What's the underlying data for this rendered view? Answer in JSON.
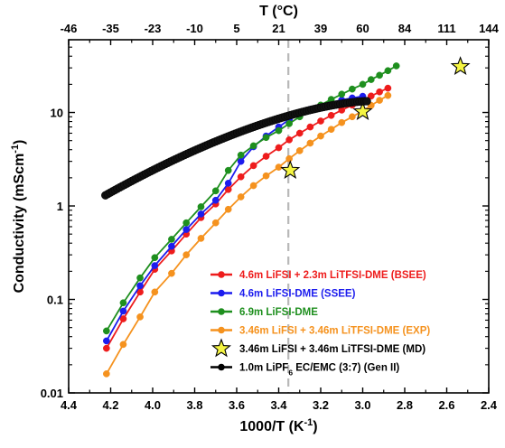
{
  "chart_data": {
    "type": "line",
    "xlabel": "1000/T (K",
    "xlabel_sup": "-1",
    "xlabel_suffix": ")",
    "ylabel": "Conductivity (mScm",
    "ylabel_sup": "-1",
    "ylabel_suffix": ")",
    "top_xlabel": "T (°C)",
    "x_reversed": true,
    "xlim": [
      4.4,
      2.4
    ],
    "ylim": [
      0.01,
      60
    ],
    "y_scale": "log",
    "x_ticks": [
      "4.4",
      "4.2",
      "4.0",
      "3.8",
      "3.6",
      "3.4",
      "3.2",
      "3.0",
      "2.8",
      "2.6",
      "2.4"
    ],
    "y_ticks": [
      "0.01",
      "0.1",
      "1",
      "10"
    ],
    "top_ticks": [
      "-46",
      "-35",
      "-23",
      "-10",
      "5",
      "21",
      "39",
      "60",
      "84",
      "111",
      "144"
    ],
    "reference_line_x": 3.354,
    "series": [
      {
        "name": "4.6m LiFSI + 2.3m LiTFSI-DME (BSEE)",
        "color": "#ee1c1c",
        "x": [
          4.22,
          4.14,
          4.06,
          3.99,
          3.91,
          3.84,
          3.77,
          3.7,
          3.64,
          3.58,
          3.52,
          3.46,
          3.4,
          3.35,
          3.3,
          3.25,
          3.2,
          3.15,
          3.1,
          3.05,
          3.0,
          2.96,
          2.92,
          2.88
        ],
        "y": [
          0.03,
          0.062,
          0.12,
          0.21,
          0.33,
          0.5,
          0.75,
          1.05,
          1.5,
          2.05,
          2.7,
          3.4,
          4.2,
          5.1,
          6.0,
          7.0,
          8.1,
          9.3,
          10.6,
          12.0,
          13.5,
          15.0,
          16.6,
          18.2
        ]
      },
      {
        "name": "4.6m LiFSI-DME (SSEE)",
        "color": "#1c1cee",
        "x": [
          4.22,
          4.14,
          4.06,
          3.99,
          3.91,
          3.84,
          3.77,
          3.7,
          3.64,
          3.58,
          3.52,
          3.46,
          3.4,
          3.35,
          3.3,
          3.25,
          3.2,
          3.15,
          3.1,
          3.05,
          3.0
        ],
        "y": [
          0.036,
          0.075,
          0.14,
          0.23,
          0.37,
          0.56,
          0.82,
          1.15,
          1.75,
          3.0,
          4.3,
          5.6,
          7.0,
          8.4,
          9.6,
          10.8,
          11.8,
          12.8,
          13.6,
          14.3,
          14.9
        ]
      },
      {
        "name": "6.9m LiFSI-DME",
        "color": "#1e8f1e",
        "x": [
          4.22,
          4.14,
          4.06,
          3.99,
          3.91,
          3.84,
          3.77,
          3.7,
          3.64,
          3.58,
          3.52,
          3.46,
          3.4,
          3.35,
          3.3,
          3.25,
          3.2,
          3.15,
          3.1,
          3.05,
          3.0,
          2.96,
          2.92,
          2.88,
          2.84
        ],
        "y": [
          0.046,
          0.092,
          0.17,
          0.28,
          0.44,
          0.66,
          0.98,
          1.45,
          2.4,
          3.5,
          4.4,
          5.4,
          6.4,
          7.6,
          9.0,
          10.5,
          12.0,
          13.8,
          15.7,
          17.8,
          20.0,
          22.5,
          25.0,
          28.0,
          31.5
        ]
      },
      {
        "name": "3.46m LiFSI + 3.46m LiTFSI-DME (EXP)",
        "color": "#f5921e",
        "x": [
          4.22,
          4.14,
          4.06,
          3.99,
          3.91,
          3.84,
          3.77,
          3.7,
          3.64,
          3.58,
          3.52,
          3.46,
          3.4,
          3.35,
          3.3,
          3.25,
          3.2,
          3.15,
          3.1,
          3.05,
          3.0,
          2.96,
          2.92,
          2.88
        ],
        "y": [
          0.016,
          0.033,
          0.065,
          0.12,
          0.19,
          0.3,
          0.45,
          0.66,
          0.92,
          1.25,
          1.65,
          2.1,
          2.6,
          3.2,
          3.9,
          4.7,
          5.6,
          6.6,
          7.8,
          9.0,
          10.4,
          11.9,
          13.5,
          15.2
        ]
      },
      {
        "name": "3.46m LiFSI + 3.46m LiTFSI-DME (MD)",
        "color": "#f5f542",
        "marker": "star",
        "x": [
          3.345,
          3.0,
          2.535
        ],
        "y": [
          2.4,
          10.2,
          31.0
        ]
      },
      {
        "name": "1.0m LiPF",
        "name_sub": "6",
        "name_suffix": " EC/EMC (3:7) (Gen II)",
        "color": "#000000",
        "dense": true,
        "x_range": [
          4.225,
          2.98
        ],
        "y_range": [
          1.3,
          13.2
        ]
      }
    ]
  }
}
